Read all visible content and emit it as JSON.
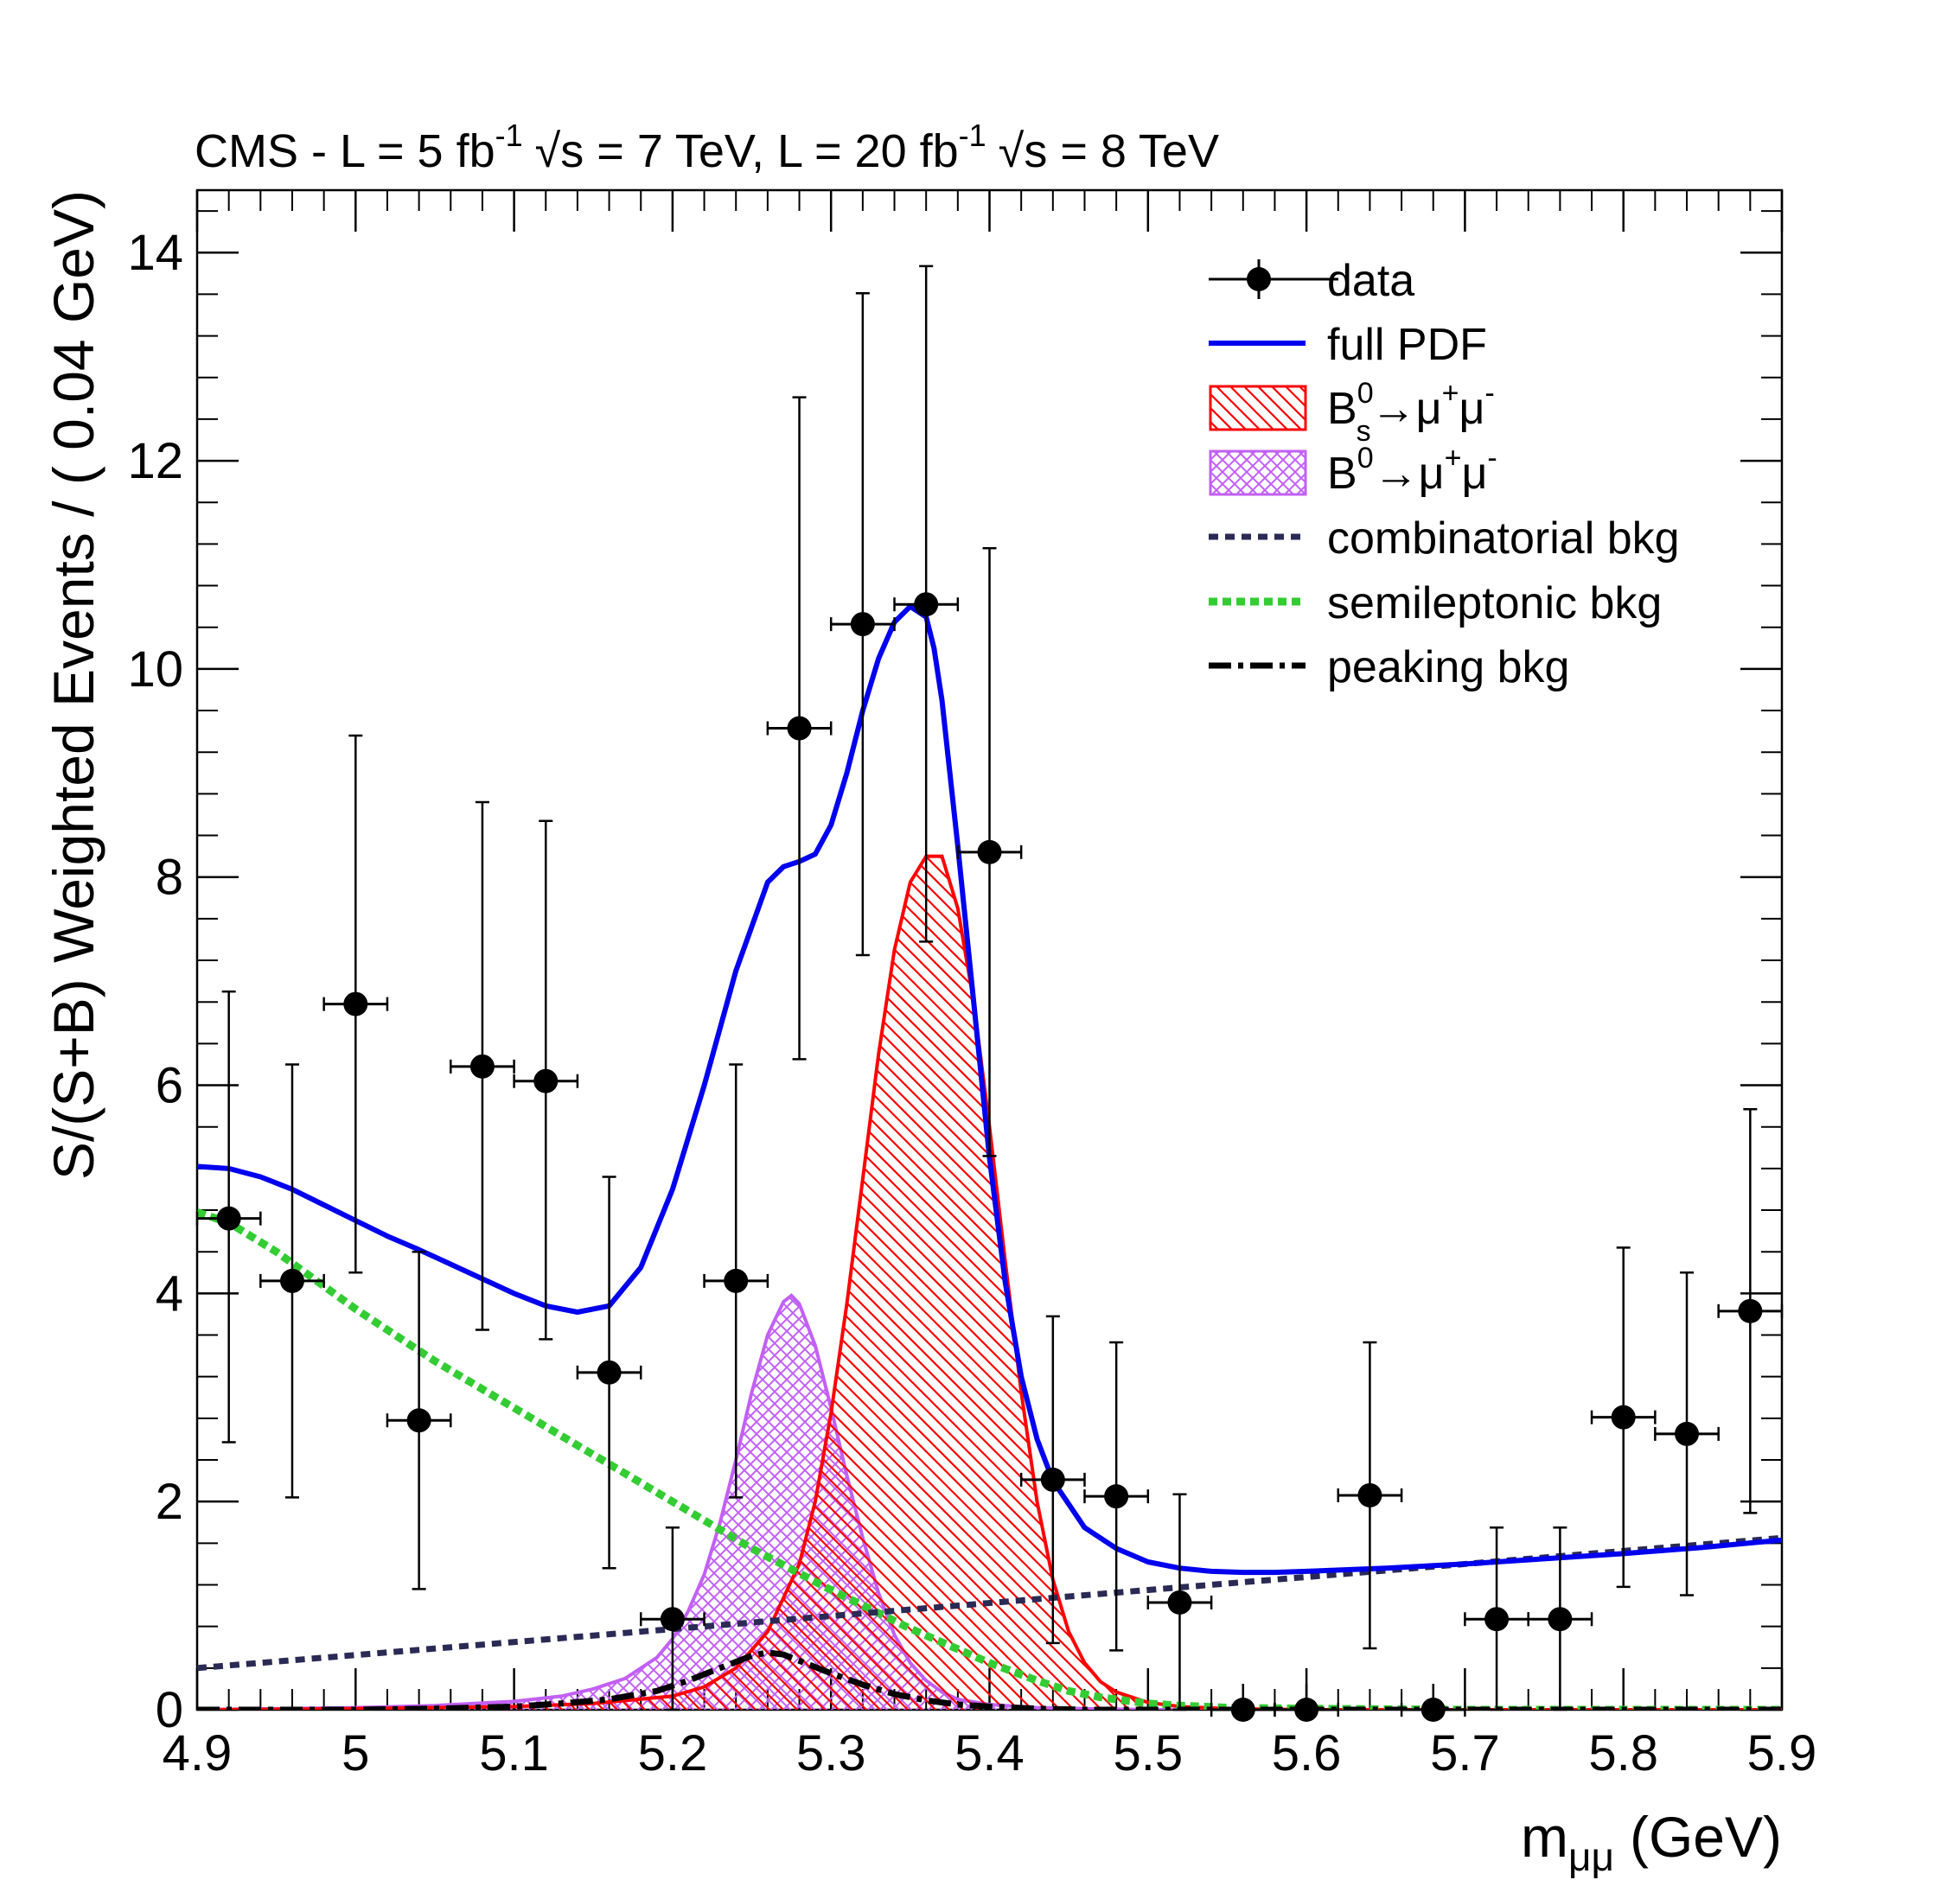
{
  "chart_data": {
    "type": "line",
    "title": "CMS - L = 5 fb",
    "title_parts": {
      "part1": "CMS - L = 5 fb",
      "sup1": "-1",
      "sqrt1": "s = 7 TeV, L = 20 fb",
      "sup2": "-1",
      "sqrt2": "s = 8 TeV"
    },
    "xlabel": "m",
    "xlabel_sub": "μμ",
    "xlabel_unit": "(GeV)",
    "ylabel": "S/(S+B) Weighted Events / ( 0.04 GeV)",
    "xlim": [
      4.9,
      5.9
    ],
    "ylim": [
      0,
      14.6
    ],
    "x_ticks": [
      4.9,
      5,
      5.1,
      5.2,
      5.3,
      5.4,
      5.5,
      5.6,
      5.7,
      5.8,
      5.9
    ],
    "x_tick_labels": [
      "4.9",
      "5",
      "5.1",
      "5.2",
      "5.3",
      "5.4",
      "5.5",
      "5.6",
      "5.7",
      "5.8",
      "5.9"
    ],
    "y_ticks": [
      0,
      2,
      4,
      6,
      8,
      10,
      12,
      14
    ],
    "y_tick_labels": [
      "0",
      "2",
      "4",
      "6",
      "8",
      "10",
      "12",
      "14"
    ],
    "grid": false,
    "legend_position": "top-right",
    "legend": [
      {
        "key": "data",
        "label": "data"
      },
      {
        "key": "full",
        "label": "full PDF"
      },
      {
        "key": "bs",
        "label_main": "B",
        "label_sup": "0",
        "label_sub": "s",
        "label_rest": "→μ",
        "label_sup2": "+",
        "label_rest2": "μ",
        "label_sup3": "-"
      },
      {
        "key": "bd",
        "label_main": "B",
        "label_sup": "0",
        "label_rest": "→μ",
        "label_sup2": "+",
        "label_rest2": "μ",
        "label_sup3": "-"
      },
      {
        "key": "comb",
        "label": "combinatorial bkg"
      },
      {
        "key": "semi",
        "label": "semileptonic bkg"
      },
      {
        "key": "peak",
        "label": "peaking bkg"
      }
    ],
    "colors": {
      "full": "#0000ee",
      "bs": "#ff0000",
      "bd": "#c260f5",
      "comb": "#2a2a55",
      "semi": "#33cc33",
      "peak": "#000000"
    },
    "data_points": {
      "x": [
        4.92,
        4.96,
        5.0,
        5.04,
        5.08,
        5.12,
        5.16,
        5.2,
        5.24,
        5.28,
        5.32,
        5.36,
        5.4,
        5.44,
        5.48,
        5.52,
        5.56,
        5.6,
        5.64,
        5.68,
        5.72,
        5.76,
        5.8,
        5.84,
        5.88
      ],
      "y": [
        4.72,
        4.12,
        6.78,
        2.78,
        6.18,
        6.04,
        3.24,
        0.87,
        4.12,
        9.43,
        10.43,
        10.62,
        8.24,
        2.21,
        2.05,
        1.03,
        0.0,
        0.0,
        2.06,
        0.0,
        0.87,
        0.87,
        2.81,
        2.65,
        3.83
      ],
      "yerr_up": [
        2.18,
        2.08,
        2.58,
        1.62,
        2.54,
        2.5,
        1.88,
        0.88,
        2.08,
        3.18,
        3.18,
        3.25,
        2.92,
        1.57,
        1.48,
        1.04,
        0.0,
        0.0,
        1.47,
        0.0,
        0.88,
        0.88,
        1.63,
        1.55,
        1.94
      ],
      "yerr_down": [
        2.15,
        2.08,
        2.58,
        1.62,
        2.53,
        2.48,
        1.88,
        0.87,
        2.08,
        3.18,
        3.18,
        3.24,
        2.92,
        1.57,
        1.48,
        1.03,
        0.0,
        0.0,
        1.47,
        0.0,
        0.87,
        0.87,
        1.63,
        1.55,
        1.94
      ],
      "xerr": 0.02
    },
    "series": [
      {
        "key": "full",
        "x": [
          4.9,
          4.92,
          4.94,
          4.96,
          4.98,
          5.0,
          5.02,
          5.04,
          5.06,
          5.08,
          5.1,
          5.12,
          5.14,
          5.16,
          5.18,
          5.2,
          5.22,
          5.24,
          5.26,
          5.27,
          5.28,
          5.29,
          5.3,
          5.31,
          5.32,
          5.33,
          5.34,
          5.35,
          5.36,
          5.365,
          5.37,
          5.38,
          5.39,
          5.4,
          5.41,
          5.42,
          5.43,
          5.44,
          5.46,
          5.48,
          5.5,
          5.52,
          5.54,
          5.56,
          5.58,
          5.6,
          5.65,
          5.7,
          5.75,
          5.8,
          5.85,
          5.9
        ],
        "y": [
          5.22,
          5.2,
          5.12,
          5.0,
          4.85,
          4.7,
          4.55,
          4.42,
          4.28,
          4.14,
          4.0,
          3.88,
          3.82,
          3.88,
          4.25,
          5.0,
          6.0,
          7.1,
          7.95,
          8.1,
          8.15,
          8.22,
          8.5,
          9.0,
          9.6,
          10.1,
          10.45,
          10.6,
          10.5,
          10.2,
          9.7,
          8.3,
          6.8,
          5.3,
          4.1,
          3.2,
          2.6,
          2.2,
          1.75,
          1.55,
          1.42,
          1.36,
          1.33,
          1.32,
          1.32,
          1.33,
          1.36,
          1.4,
          1.45,
          1.5,
          1.56,
          1.63
        ]
      },
      {
        "key": "bs",
        "x": [
          4.9,
          5.0,
          5.1,
          5.15,
          5.2,
          5.22,
          5.24,
          5.26,
          5.28,
          5.29,
          5.3,
          5.31,
          5.32,
          5.33,
          5.34,
          5.35,
          5.36,
          5.37,
          5.38,
          5.39,
          5.4,
          5.41,
          5.42,
          5.43,
          5.44,
          5.45,
          5.46,
          5.47,
          5.48,
          5.5,
          5.52,
          5.55,
          5.6,
          5.7,
          5.9
        ],
        "y": [
          0.0,
          0.01,
          0.03,
          0.06,
          0.13,
          0.22,
          0.4,
          0.75,
          1.4,
          2.0,
          2.85,
          3.9,
          5.1,
          6.3,
          7.3,
          7.95,
          8.2,
          8.2,
          7.7,
          6.8,
          5.6,
          4.3,
          3.05,
          2.0,
          1.25,
          0.75,
          0.45,
          0.27,
          0.17,
          0.07,
          0.03,
          0.01,
          0.0,
          0.0,
          0.0
        ]
      },
      {
        "key": "bd",
        "x": [
          4.9,
          5.0,
          5.05,
          5.1,
          5.13,
          5.15,
          5.17,
          5.19,
          5.2,
          5.21,
          5.22,
          5.23,
          5.24,
          5.25,
          5.26,
          5.27,
          5.275,
          5.28,
          5.29,
          5.3,
          5.31,
          5.32,
          5.33,
          5.34,
          5.35,
          5.36,
          5.37,
          5.38,
          5.4,
          5.43,
          5.46,
          5.5,
          5.6,
          5.9
        ],
        "y": [
          0.0,
          0.02,
          0.04,
          0.08,
          0.13,
          0.2,
          0.3,
          0.5,
          0.68,
          0.95,
          1.3,
          1.8,
          2.4,
          3.05,
          3.6,
          3.92,
          3.98,
          3.9,
          3.5,
          2.9,
          2.25,
          1.65,
          1.12,
          0.72,
          0.45,
          0.28,
          0.17,
          0.1,
          0.05,
          0.02,
          0.01,
          0.0,
          0.0,
          0.0
        ]
      },
      {
        "key": "comb",
        "x": [
          4.9,
          5.9
        ],
        "y": [
          0.4,
          1.65
        ]
      },
      {
        "key": "semi",
        "x": [
          4.9,
          4.92,
          4.95,
          5.0,
          5.05,
          5.1,
          5.15,
          5.2,
          5.25,
          5.3,
          5.35,
          5.4,
          5.43,
          5.45,
          5.47,
          5.5,
          5.52,
          5.55,
          5.6,
          5.7,
          5.9
        ],
        "y": [
          4.78,
          4.68,
          4.4,
          3.85,
          3.35,
          2.9,
          2.45,
          2.0,
          1.55,
          1.15,
          0.78,
          0.45,
          0.28,
          0.18,
          0.12,
          0.06,
          0.04,
          0.02,
          0.01,
          0.0,
          0.0
        ]
      },
      {
        "key": "peak",
        "x": [
          4.9,
          5.0,
          5.05,
          5.1,
          5.13,
          5.16,
          5.19,
          5.21,
          5.23,
          5.25,
          5.26,
          5.27,
          5.28,
          5.3,
          5.32,
          5.34,
          5.36,
          5.38,
          5.4,
          5.43,
          5.46,
          5.5,
          5.6,
          5.9
        ],
        "y": [
          0.0,
          0.0,
          0.01,
          0.03,
          0.06,
          0.1,
          0.18,
          0.28,
          0.4,
          0.52,
          0.55,
          0.53,
          0.47,
          0.35,
          0.24,
          0.15,
          0.09,
          0.05,
          0.03,
          0.01,
          0.0,
          0.0,
          0.0,
          0.0
        ]
      }
    ]
  }
}
